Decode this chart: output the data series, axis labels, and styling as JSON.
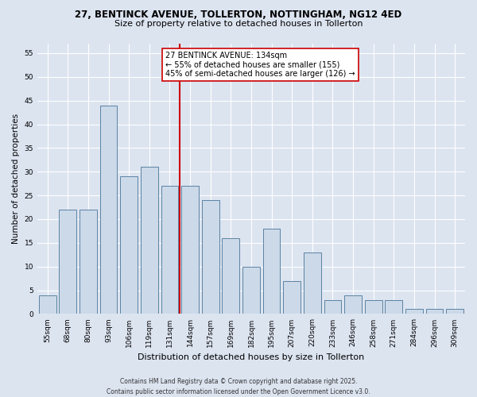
{
  "title1": "27, BENTINCK AVENUE, TOLLERTON, NOTTINGHAM, NG12 4ED",
  "title2": "Size of property relative to detached houses in Tollerton",
  "xlabel": "Distribution of detached houses by size in Tollerton",
  "ylabel": "Number of detached properties",
  "categories": [
    "55sqm",
    "68sqm",
    "80sqm",
    "93sqm",
    "106sqm",
    "119sqm",
    "131sqm",
    "144sqm",
    "157sqm",
    "169sqm",
    "182sqm",
    "195sqm",
    "207sqm",
    "220sqm",
    "233sqm",
    "246sqm",
    "258sqm",
    "271sqm",
    "284sqm",
    "296sqm",
    "309sqm"
  ],
  "values": [
    4,
    22,
    22,
    44,
    29,
    31,
    27,
    27,
    24,
    16,
    10,
    18,
    7,
    13,
    3,
    4,
    3,
    3,
    1,
    1,
    1
  ],
  "bar_color": "#ccd9e8",
  "bar_edge_color": "#5b83a3",
  "vline_color": "#cc0000",
  "annotation_line1": "27 BENTINCK AVENUE: 134sqm",
  "annotation_line2": "← 55% of detached houses are smaller (155)",
  "annotation_line3": "45% of semi-detached houses are larger (126) →",
  "annotation_box_color": "#ffffff",
  "annotation_box_edge": "#cc0000",
  "bg_color": "#dce4f0",
  "plot_bg_color": "#dce4f0",
  "grid_color": "#ffffff",
  "footer": "Contains HM Land Registry data © Crown copyright and database right 2025.\nContains public sector information licensed under the Open Government Licence v3.0.",
  "ylim": [
    0,
    57
  ],
  "yticks": [
    0,
    5,
    10,
    15,
    20,
    25,
    30,
    35,
    40,
    45,
    50,
    55
  ],
  "title1_fontsize": 8.5,
  "title2_fontsize": 8.0,
  "xlabel_fontsize": 8.0,
  "ylabel_fontsize": 7.5,
  "tick_fontsize": 6.5,
  "annot_fontsize": 7.0,
  "footer_fontsize": 5.5
}
